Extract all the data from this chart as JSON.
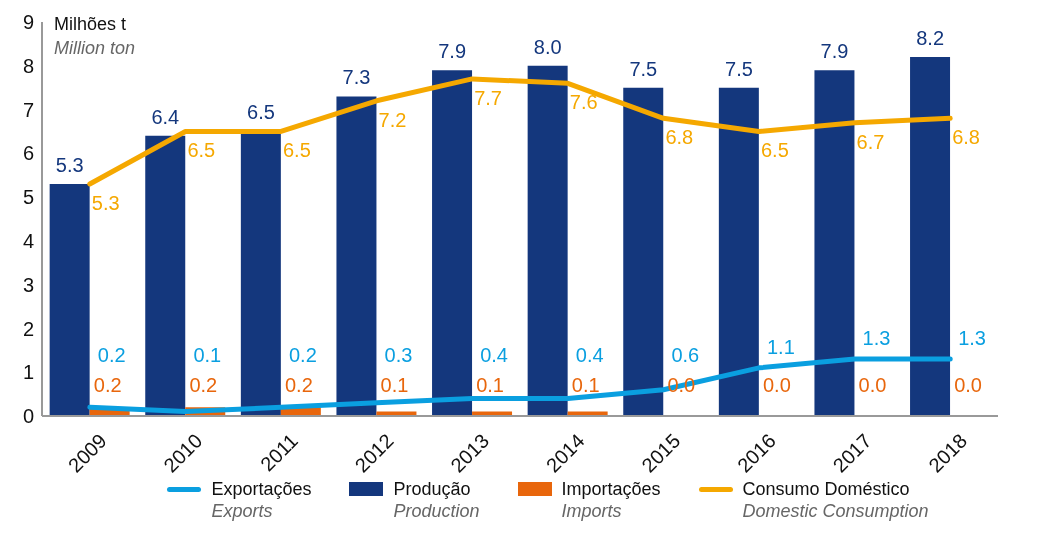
{
  "chart_data": {
    "type": "bar",
    "ylabel": "Milhões t\nMillion ton",
    "categories": [
      "2009",
      "2010",
      "2011",
      "2012",
      "2013",
      "2014",
      "2015",
      "2016",
      "2017",
      "2018"
    ],
    "series": [
      {
        "name": "Exportações\nExports",
        "type": "line",
        "color": "#0a9fe0",
        "values": [
          0.2,
          0.1,
          0.2,
          0.3,
          0.4,
          0.4,
          0.6,
          1.1,
          1.3,
          1.3
        ],
        "value_labels": [
          "0.2",
          "0.1",
          "0.2",
          "0.3",
          "0.4",
          "0.4",
          "0.6",
          "1.1",
          "1.3",
          "1.3"
        ]
      },
      {
        "name": "Produção\nProduction",
        "color": "#14377d",
        "values": [
          5.3,
          6.4,
          6.5,
          7.3,
          7.9,
          8.0,
          7.5,
          7.5,
          7.9,
          8.2
        ],
        "value_labels": [
          "5.3",
          "6.4",
          "6.5",
          "7.3",
          "7.9",
          "8.0",
          "7.5",
          "7.5",
          "7.9",
          "8.2"
        ]
      },
      {
        "name": "Importações\nImports",
        "color": "#e8660c",
        "values": [
          0.2,
          0.2,
          0.2,
          0.1,
          0.1,
          0.1,
          0.0,
          0.0,
          0.0,
          0.0
        ],
        "value_labels": [
          "0.2",
          "0.2",
          "0.2",
          "0.1",
          "0.1",
          "0.1",
          "0.0",
          "0.0",
          "0.0",
          "0.0"
        ]
      },
      {
        "name": "Consumo Doméstico\nDomestic Consumption",
        "type": "line",
        "color": "#f5a800",
        "values": [
          5.3,
          6.5,
          6.5,
          7.2,
          7.7,
          7.6,
          6.8,
          6.5,
          6.7,
          6.8
        ],
        "value_labels": [
          "5.3",
          "6.5",
          "6.5",
          "7.2",
          "7.7",
          "7.6",
          "6.8",
          "6.5",
          "6.7",
          "6.8"
        ]
      }
    ],
    "ylim": [
      0,
      9
    ],
    "yticks": [
      0,
      1,
      2,
      3,
      4,
      5,
      6,
      7,
      8,
      9
    ],
    "legend": "bottom",
    "marker": "none"
  }
}
